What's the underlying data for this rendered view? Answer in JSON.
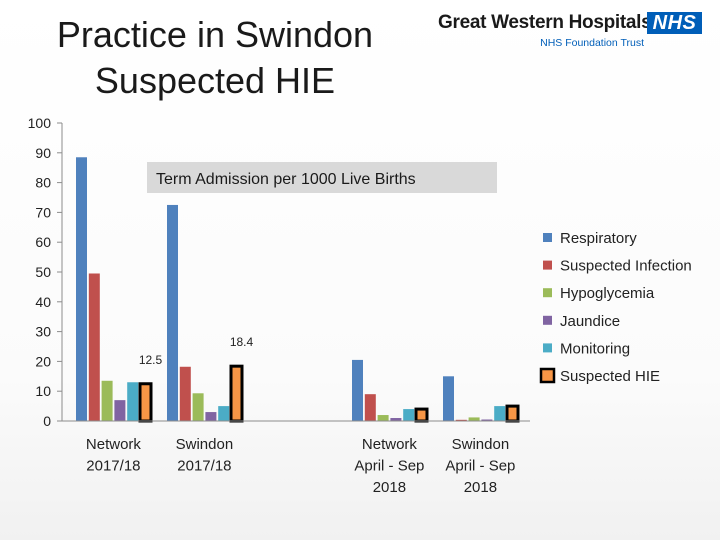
{
  "slide": {
    "title_lines": [
      "Practice in Swindon",
      "Suspected HIE"
    ]
  },
  "logo": {
    "name": "Great Western Hospitals",
    "badge": "NHS",
    "subtitle": "NHS Foundation Trust",
    "badge_color": "#005eb8"
  },
  "chart_data": {
    "type": "bar",
    "title": "Term Admission per 1000 Live Births",
    "xlabel": "",
    "ylabel": "",
    "ylim": [
      0,
      100
    ],
    "yticks": [
      0,
      10,
      20,
      30,
      40,
      50,
      60,
      70,
      80,
      90,
      100
    ],
    "grid": false,
    "legend_position": "right",
    "categories": [
      [
        "Network",
        "2017/18"
      ],
      [
        "Swindon",
        "2017/18"
      ],
      [
        "Network",
        "April - Sep",
        "2018"
      ],
      [
        "Swindon",
        "April - Sep",
        "2018"
      ]
    ],
    "series": [
      {
        "name": "Respiratory",
        "color": "#4f81bd",
        "values": [
          88.5,
          72.5,
          20.5,
          15.0
        ]
      },
      {
        "name": "Suspected Infection",
        "color": "#c0504d",
        "values": [
          49.5,
          18.2,
          9.0,
          0.4
        ]
      },
      {
        "name": "Hypoglycemia",
        "color": "#9bbb59",
        "values": [
          13.5,
          9.3,
          2.0,
          1.2
        ]
      },
      {
        "name": "Jaundice",
        "color": "#8064a2",
        "values": [
          7.0,
          3.0,
          1.0,
          0.5
        ]
      },
      {
        "name": "Monitoring",
        "color": "#4bacc6",
        "values": [
          13.0,
          5.0,
          4.0,
          5.0
        ]
      },
      {
        "name": "Suspected HIE",
        "color": "#f79646",
        "border": "#000000",
        "values": [
          12.5,
          18.4,
          4.0,
          5.0
        ]
      }
    ],
    "annotations": [
      {
        "text": "12.5",
        "category": 0,
        "series": "Suspected HIE"
      },
      {
        "text": "18.4",
        "category": 1,
        "series": "Suspected HIE"
      }
    ]
  }
}
